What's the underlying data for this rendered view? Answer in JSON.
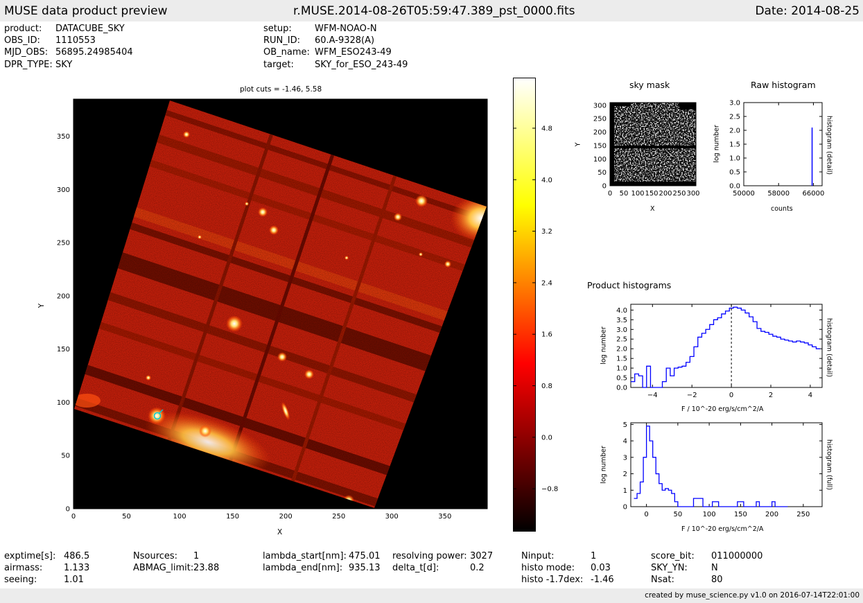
{
  "header": {
    "title": "MUSE data product preview",
    "filename": "r.MUSE.2014-08-26T05:59:47.389_pst_0000.fits",
    "date": "Date: 2014-08-25"
  },
  "meta_left": [
    {
      "key": "product:",
      "value": "DATACUBE_SKY"
    },
    {
      "key": "OBS_ID:",
      "value": "1110553"
    },
    {
      "key": "MJD_OBS:",
      "value": "56895.24985404"
    },
    {
      "key": "DPR_TYPE:",
      "value": "SKY"
    }
  ],
  "meta_right": [
    {
      "key": "setup:",
      "value": "WFM-NOAO-N"
    },
    {
      "key": "RUN_ID:",
      "value": "60.A-9328(A)"
    },
    {
      "key": "OB_name:",
      "value": "WFM_ESO243-49"
    },
    {
      "key": "target:",
      "value": "SKY_for_ESO_243-49"
    }
  ],
  "image_panel": {
    "title": "plot cuts = -1.46, 5.58",
    "xlabel": "X",
    "ylabel": "Y",
    "xticks": [
      "0",
      "50",
      "100",
      "150",
      "200",
      "250",
      "300",
      "350"
    ],
    "yticks": [
      "0",
      "50",
      "100",
      "150",
      "200",
      "250",
      "300",
      "350"
    ],
    "colorbar_ticks": [
      "4.8",
      "4.0",
      "3.2",
      "2.4",
      "1.6",
      "0.8",
      "0.0",
      "−0.8"
    ]
  },
  "colors": {
    "background": "#000000",
    "field": "#c0200a",
    "line": "#0000ff",
    "header_bar": "#ececec"
  },
  "chart_data": [
    {
      "type": "heatmap",
      "title": "plot cuts = -1.46, 5.58",
      "xlabel": "X",
      "ylabel": "Y",
      "xlim": [
        0,
        390
      ],
      "ylim": [
        0,
        385
      ],
      "colormap": "hot",
      "color_range": [
        -1.46,
        5.58
      ]
    },
    {
      "type": "heatmap",
      "title": "sky mask",
      "xlabel": "X",
      "ylabel": "Y",
      "xlim": [
        0,
        310
      ],
      "ylim": [
        0,
        310
      ],
      "xticks": [
        "0",
        "50",
        "100",
        "150",
        "200",
        "250",
        "300"
      ],
      "yticks": [
        "0",
        "50",
        "100",
        "150",
        "200",
        "250",
        "300"
      ]
    },
    {
      "type": "bar",
      "title": "Raw histogram",
      "xlabel": "counts",
      "ylabel": "log number",
      "ylabel_right": "histogram (detail)",
      "xlim": [
        50000,
        68000
      ],
      "ylim": [
        0,
        3.0
      ],
      "xticks": [
        "50000",
        "58000",
        "66000"
      ],
      "yticks": [
        "0.0",
        "0.5",
        "1.0",
        "1.5",
        "2.0",
        "2.5",
        "3.0"
      ],
      "x": [
        65700
      ],
      "values": [
        2.1
      ]
    },
    {
      "type": "line",
      "title": "Product histograms",
      "xlabel": "F / 10^-20 erg/s/cm^2/A",
      "ylabel": "log number",
      "ylabel_right": "histogram (detail)",
      "xlim": [
        -5.1,
        4.6
      ],
      "ylim": [
        0,
        4.3
      ],
      "xticks": [
        "−4",
        "−2",
        "0",
        "2",
        "4"
      ],
      "yticks": [
        "0.0",
        "0.5",
        "1.0",
        "1.5",
        "2.0",
        "2.5",
        "3.0",
        "3.5",
        "4.0"
      ],
      "step": true,
      "x": [
        -5.1,
        -4.9,
        -4.7,
        -4.5,
        -4.3,
        -4.1,
        -3.9,
        -3.7,
        -3.5,
        -3.3,
        -3.1,
        -2.9,
        -2.7,
        -2.5,
        -2.3,
        -2.1,
        -1.9,
        -1.7,
        -1.5,
        -1.3,
        -1.1,
        -0.9,
        -0.7,
        -0.5,
        -0.3,
        -0.1,
        0.1,
        0.3,
        0.5,
        0.7,
        0.9,
        1.1,
        1.3,
        1.5,
        1.7,
        1.9,
        2.1,
        2.3,
        2.5,
        2.7,
        2.9,
        3.1,
        3.3,
        3.5,
        3.7,
        3.9,
        4.1,
        4.3
      ],
      "values": [
        0.3,
        0.7,
        0.6,
        0.0,
        1.1,
        0.0,
        0.0,
        0.0,
        0.3,
        1.0,
        0.6,
        1.0,
        1.05,
        1.1,
        1.3,
        1.6,
        2.1,
        2.6,
        2.8,
        3.0,
        3.25,
        3.5,
        3.6,
        3.8,
        3.95,
        4.1,
        4.15,
        4.1,
        4.0,
        3.85,
        3.65,
        3.4,
        3.05,
        2.9,
        2.85,
        2.75,
        2.65,
        2.6,
        2.5,
        2.45,
        2.4,
        2.35,
        2.4,
        2.35,
        2.3,
        2.2,
        2.1,
        2.0
      ],
      "vline": 0
    },
    {
      "type": "line",
      "xlabel": "F / 10^-20 erg/s/cm^2/A",
      "ylabel": "log number",
      "ylabel_right": "histogram (full)",
      "xlim": [
        -25,
        280
      ],
      "ylim": [
        0,
        5.1
      ],
      "xticks": [
        "0",
        "50",
        "100",
        "150",
        "200",
        "250"
      ],
      "yticks": [
        "0",
        "1",
        "2",
        "3",
        "4",
        "5"
      ],
      "step": true,
      "x": [
        -20,
        -15,
        -10,
        -5,
        0,
        5,
        10,
        15,
        20,
        25,
        30,
        35,
        40,
        45,
        50,
        55,
        60,
        65,
        70,
        75,
        80,
        85,
        90,
        95,
        100,
        105,
        110,
        115,
        120,
        125,
        130,
        135,
        140,
        145,
        150,
        155,
        160,
        165,
        170,
        175,
        180,
        185,
        190,
        195,
        200,
        205,
        210,
        215,
        220
      ],
      "values": [
        0.5,
        0.8,
        1.5,
        3.0,
        4.9,
        4.0,
        3.0,
        2.0,
        1.4,
        1.0,
        1.1,
        1.0,
        0.8,
        0.3,
        0.0,
        0.0,
        0.0,
        0.0,
        0.0,
        0.5,
        0.5,
        0.5,
        0.0,
        0.0,
        0.0,
        0.3,
        0.3,
        0.0,
        0.0,
        0.0,
        0.0,
        0.0,
        0.0,
        0.3,
        0.3,
        0.0,
        0.0,
        0.0,
        0.0,
        0.3,
        0.0,
        0.0,
        0.0,
        0.0,
        0.3,
        0.0,
        0.0,
        0.0,
        0.0
      ]
    }
  ],
  "side_titles": {
    "sky_mask": "sky mask",
    "raw_hist": "Raw histogram",
    "product_hists": "Product histograms"
  },
  "footer_stats": [
    [
      {
        "key": "exptime[s]:",
        "value": "486.5"
      },
      {
        "key": "airmass:",
        "value": "1.133"
      },
      {
        "key": "seeing:",
        "value": "1.01"
      }
    ],
    [
      {
        "key": "Nsources:",
        "value": "1"
      },
      {
        "key": "ABMAG_limit:",
        "value": "23.88"
      }
    ],
    [
      {
        "key": "lambda_start[nm]:",
        "value": "475.01"
      },
      {
        "key": "lambda_end[nm]:",
        "value": "935.13"
      }
    ],
    [
      {
        "key": "resolving power:",
        "value": "3027"
      },
      {
        "key": "delta_t[d]:",
        "value": "0.2"
      }
    ],
    [
      {
        "key": "Ninput:",
        "value": "1"
      },
      {
        "key": "histo mode:",
        "value": "0.03"
      },
      {
        "key": "histo -1.7dex:",
        "value": "-1.46"
      }
    ],
    [
      {
        "key": "score_bit:",
        "value": "011000000"
      },
      {
        "key": "SKY_YN:",
        "value": "N"
      },
      {
        "key": "Nsat:",
        "value": "80"
      }
    ]
  ],
  "footer": {
    "credit": "created by muse_science.py v1.0 on 2016-07-14T22:01:00"
  }
}
